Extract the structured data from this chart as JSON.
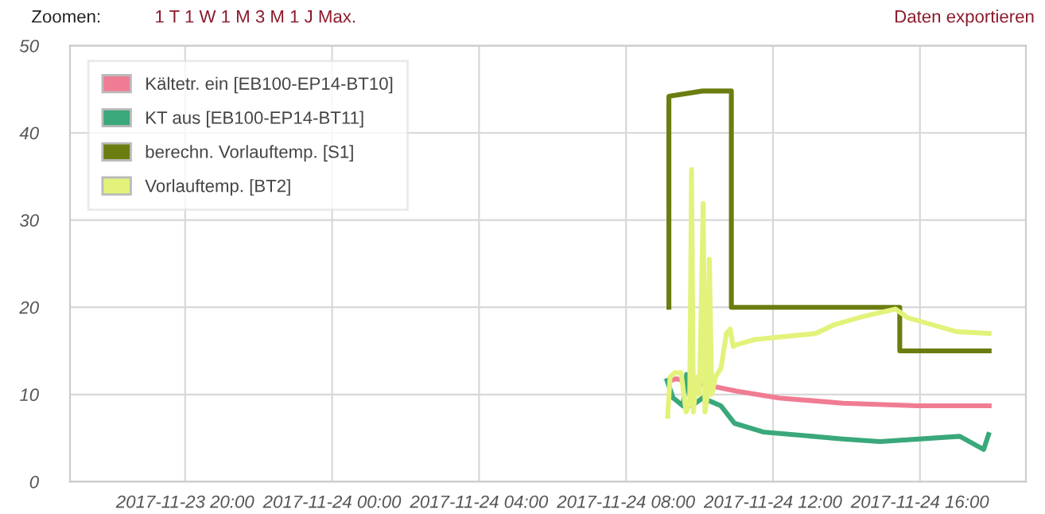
{
  "chart_data": {
    "type": "line",
    "annotations": [
      "Zoomen:",
      "1 T 1 W 1 M 3 M 1 J Max.",
      "Daten exportieren"
    ],
    "xlim": [
      "2017-11-23T16:52",
      "2017-11-24T18:53"
    ],
    "xticks": [
      {
        "value": "2017-11-23T20:00",
        "label": "2017-11-23 20:00"
      },
      {
        "value": "2017-11-24T00:00",
        "label": "2017-11-24 00:00"
      },
      {
        "value": "2017-11-24T04:00",
        "label": "2017-11-24 04:00"
      },
      {
        "value": "2017-11-24T08:00",
        "label": "2017-11-24 08:00"
      },
      {
        "value": "2017-11-24T12:00",
        "label": "2017-11-24 12:00"
      },
      {
        "value": "2017-11-24T16:00",
        "label": "2017-11-24 16:00"
      }
    ],
    "ylim": [
      0,
      50
    ],
    "yticks": [
      0,
      10,
      20,
      30,
      40,
      50
    ],
    "grid": true,
    "legend": "top left",
    "marker": "none",
    "line_style": "solid",
    "series": [
      {
        "name": "Kältetr. ein [EB100-EP14-BT10]",
        "color": "#f07c93",
        "x": [
          "2017-11-24T09:10",
          "2017-11-24T09:21",
          "2017-11-24T11:00",
          "2017-11-24T12:10",
          "2017-11-24T13:54",
          "2017-11-24T15:56",
          "2017-11-24T17:53"
        ],
        "values": [
          11.5,
          11.8,
          10.4,
          9.6,
          9.0,
          8.7,
          8.7
        ]
      },
      {
        "name": "KT aus [EB100-EP14-BT11]",
        "color": "#3aa87a",
        "x": [
          "2017-11-24T09:07",
          "2017-11-24T09:17",
          "2017-11-24T09:33",
          "2017-11-24T09:39",
          "2017-11-24T09:47",
          "2017-11-24T10:05",
          "2017-11-24T10:35",
          "2017-11-24T10:57",
          "2017-11-24T11:44",
          "2017-11-24T13:54",
          "2017-11-24T14:55",
          "2017-11-24T17:05",
          "2017-11-24T17:44",
          "2017-11-24T17:52"
        ],
        "values": [
          11.6,
          9.6,
          8.7,
          12.3,
          8.7,
          9.6,
          8.7,
          6.7,
          5.7,
          4.9,
          4.6,
          5.2,
          3.7,
          5.4
        ]
      },
      {
        "name": "berechn. Vorlauftemp. [S1]",
        "color": "#6b7d10",
        "x": [
          "2017-11-24T09:10",
          "2017-11-24T09:10",
          "2017-11-24T10:05",
          "2017-11-24T10:52",
          "2017-11-24T10:52",
          "2017-11-24T15:27",
          "2017-11-24T15:27",
          "2017-11-24T17:53"
        ],
        "values": [
          20,
          44.2,
          44.8,
          44.8,
          20,
          20,
          15,
          15
        ]
      },
      {
        "name": "Vorlauftemp. [BT2]",
        "color": "#e3f27a",
        "x": [
          "2017-11-24T09:08",
          "2017-11-24T09:12",
          "2017-11-24T09:20",
          "2017-11-24T09:30",
          "2017-11-24T09:38",
          "2017-11-24T09:44",
          "2017-11-24T09:47",
          "2017-11-24T09:50",
          "2017-11-24T09:55",
          "2017-11-24T10:00",
          "2017-11-24T10:06",
          "2017-11-24T10:09",
          "2017-11-24T10:13",
          "2017-11-24T10:16",
          "2017-11-24T10:20",
          "2017-11-24T10:26",
          "2017-11-24T10:35",
          "2017-11-24T10:44",
          "2017-11-24T10:50",
          "2017-11-24T10:55",
          "2017-11-24T11:00",
          "2017-11-24T11:30",
          "2017-11-24T13:10",
          "2017-11-24T13:40",
          "2017-11-24T14:30",
          "2017-11-24T15:20",
          "2017-11-24T15:40",
          "2017-11-24T16:10",
          "2017-11-24T17:00",
          "2017-11-24T17:53"
        ],
        "values": [
          7.5,
          12,
          12.5,
          12.5,
          8,
          9,
          35.8,
          8,
          12,
          10,
          31.9,
          8,
          10,
          25.5,
          10,
          12,
          13,
          17,
          17.5,
          15.5,
          15.7,
          16.3,
          17,
          18,
          19,
          19.8,
          18.8,
          18.2,
          17.2,
          17
        ]
      }
    ]
  }
}
